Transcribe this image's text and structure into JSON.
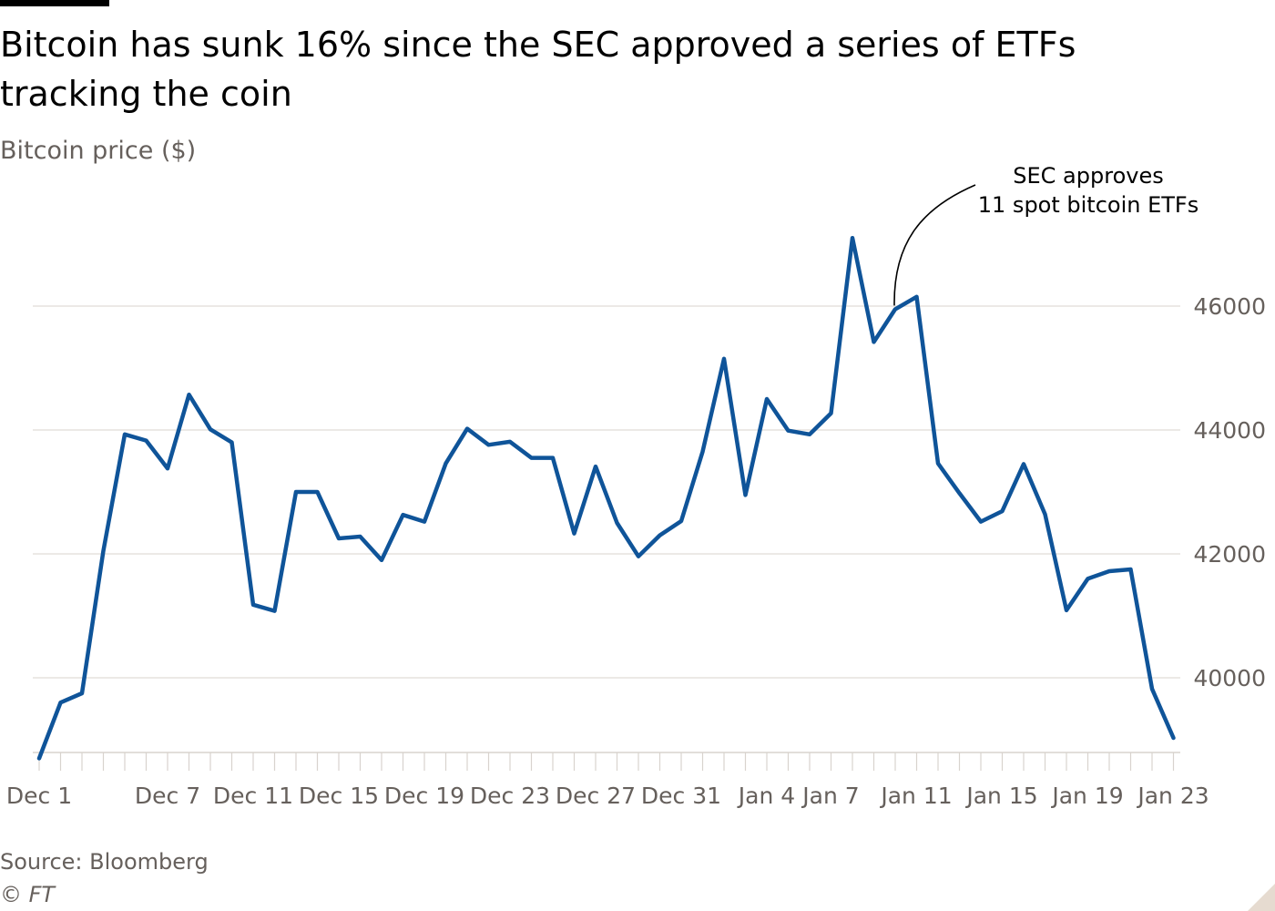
{
  "title": "Bitcoin has sunk 16% since the SEC approved a series of ETFs tracking the coin",
  "subtitle": "Bitcoin price ($)",
  "source": "Source: Bloomberg",
  "credit": "© FT",
  "chart_data": {
    "type": "line",
    "title": "Bitcoin has sunk 16% since the SEC approved a series of ETFs tracking the coin",
    "ylabel": "Bitcoin price ($)",
    "xlabel": "",
    "ylim": [
      38800,
      47600
    ],
    "yticks": [
      40000,
      42000,
      44000,
      46000
    ],
    "ytick_labels": [
      "40000",
      "42000",
      "44000",
      "46000"
    ],
    "grid": true,
    "y_axis_side": "right",
    "xticks": [
      {
        "day": 0,
        "label": "Dec 1"
      },
      {
        "day": 6,
        "label": "Dec 7"
      },
      {
        "day": 10,
        "label": "Dec 11"
      },
      {
        "day": 14,
        "label": "Dec 15"
      },
      {
        "day": 18,
        "label": "Dec 19"
      },
      {
        "day": 22,
        "label": "Dec 23"
      },
      {
        "day": 26,
        "label": "Dec 27"
      },
      {
        "day": 30,
        "label": "Dec 31"
      },
      {
        "day": 34,
        "label": "Jan 4"
      },
      {
        "day": 37,
        "label": "Jan 7"
      },
      {
        "day": 41,
        "label": "Jan 11"
      },
      {
        "day": 45,
        "label": "Jan 15"
      },
      {
        "day": 49,
        "label": "Jan 19"
      },
      {
        "day": 53,
        "label": "Jan 23"
      }
    ],
    "series": [
      {
        "name": "",
        "color": "#0f5499",
        "values": [
          38700,
          39600,
          39750,
          42050,
          43930,
          43830,
          43380,
          44570,
          44010,
          43800,
          41180,
          41080,
          43000,
          43000,
          42250,
          42280,
          41900,
          42630,
          42520,
          43460,
          44020,
          43760,
          43810,
          43550,
          43550,
          42330,
          43410,
          42500,
          41960,
          42300,
          42530,
          43650,
          45150,
          42950,
          44500,
          43990,
          43930,
          44270,
          47100,
          45420,
          45950,
          46150,
          43460,
          42980,
          42520,
          42690,
          43450,
          42640,
          41090,
          41600,
          41720,
          41750,
          39820,
          39030
        ]
      }
    ],
    "annotations": [
      {
        "lines": [
          "SEC approves",
          "11 spot bitcoin ETFs"
        ],
        "day": 40,
        "value": 45950
      }
    ]
  }
}
